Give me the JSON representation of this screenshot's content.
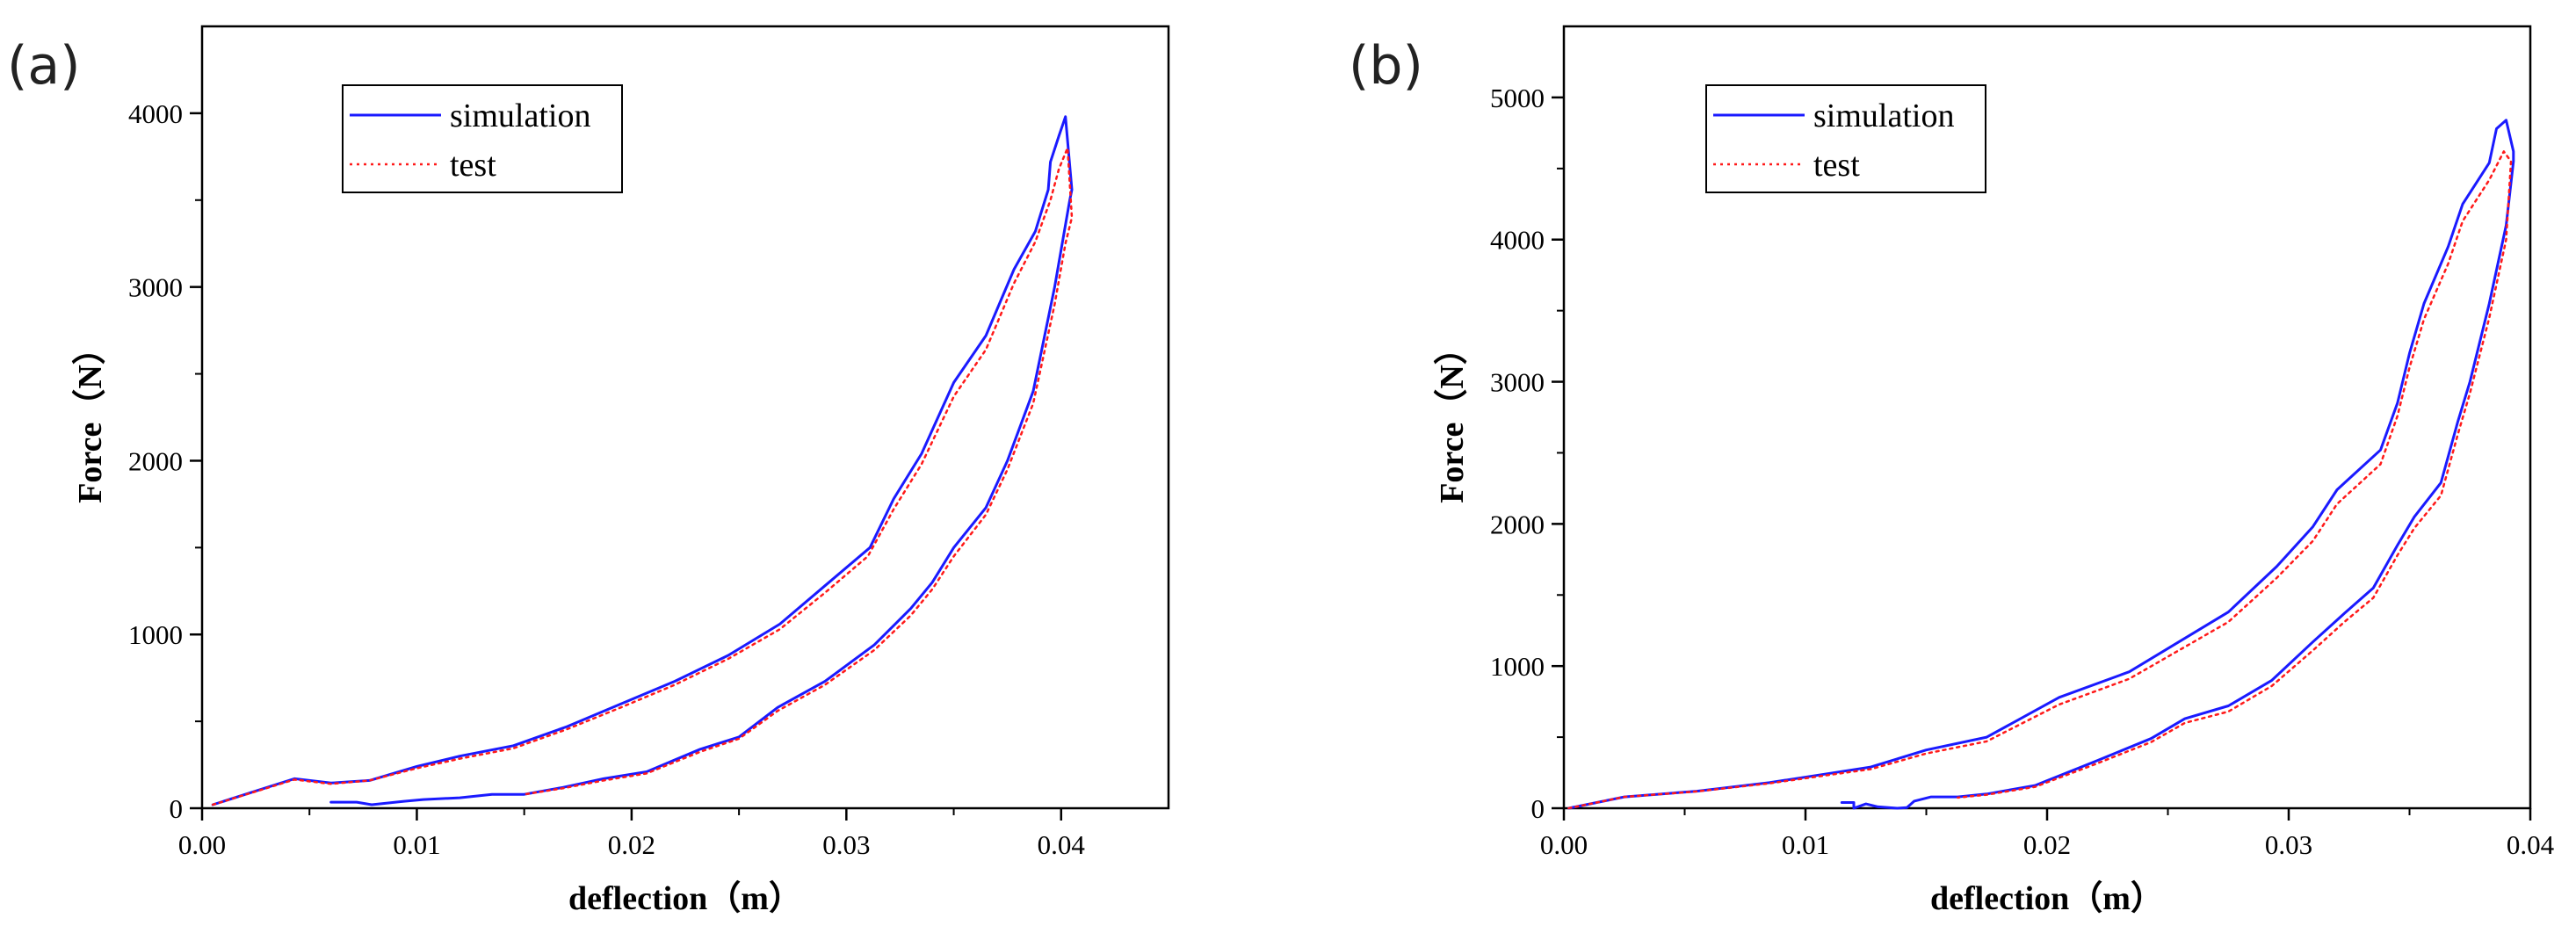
{
  "colors": {
    "simulation": "#1a1aff",
    "test": "#ff1a1a",
    "axis": "#000000"
  },
  "chart_data": [
    {
      "type": "line",
      "panel_label": "(a)",
      "xlabel": "deflection（m）",
      "ylabel": "Force（N）",
      "xlim": [
        0.0,
        0.045
      ],
      "ylim": [
        0,
        4500
      ],
      "xticks": [
        0.0,
        0.01,
        0.02,
        0.03,
        0.04
      ],
      "xtick_labels": [
        "0.00",
        "0.01",
        "0.02",
        "0.03",
        "0.04"
      ],
      "yticks": [
        0,
        1000,
        2000,
        3000,
        4000
      ],
      "ytick_labels": [
        "0",
        "1000",
        "2000",
        "3000",
        "4000"
      ],
      "legend": [
        "simulation",
        "test"
      ],
      "legend_position": "top-left",
      "series": [
        {
          "name": "simulation",
          "style": "solid",
          "points": [
            [
              0.0005,
              20
            ],
            [
              0.0043,
              170
            ],
            [
              0.006,
              145
            ],
            [
              0.0078,
              160
            ],
            [
              0.01,
              240
            ],
            [
              0.012,
              300
            ],
            [
              0.0145,
              360
            ],
            [
              0.017,
              470
            ],
            [
              0.0195,
              600
            ],
            [
              0.022,
              730
            ],
            [
              0.0245,
              880
            ],
            [
              0.0269,
              1060
            ],
            [
              0.029,
              1280
            ],
            [
              0.0311,
              1500
            ],
            [
              0.0322,
              1780
            ],
            [
              0.0335,
              2040
            ],
            [
              0.035,
              2450
            ],
            [
              0.0365,
              2720
            ],
            [
              0.0378,
              3100
            ],
            [
              0.0388,
              3320
            ],
            [
              0.0394,
              3560
            ],
            [
              0.0395,
              3720
            ],
            [
              0.0399,
              3870
            ],
            [
              0.0402,
              3980
            ],
            [
              0.0405,
              3560
            ],
            [
              0.0404,
              3500
            ],
            [
              0.0397,
              3000
            ],
            [
              0.0387,
              2400
            ],
            [
              0.0375,
              2000
            ],
            [
              0.0365,
              1730
            ],
            [
              0.035,
              1500
            ],
            [
              0.034,
              1300
            ],
            [
              0.033,
              1150
            ],
            [
              0.0313,
              940
            ],
            [
              0.029,
              730
            ],
            [
              0.0268,
              580
            ],
            [
              0.025,
              410
            ],
            [
              0.0232,
              340
            ],
            [
              0.0207,
              210
            ],
            [
              0.0187,
              170
            ],
            [
              0.0168,
              120
            ],
            [
              0.015,
              80
            ],
            [
              0.0135,
              80
            ],
            [
              0.012,
              60
            ],
            [
              0.0103,
              50
            ],
            [
              0.0094,
              40
            ],
            [
              0.0079,
              20
            ],
            [
              0.0072,
              35
            ],
            [
              0.0065,
              35
            ],
            [
              0.006,
              35
            ]
          ]
        },
        {
          "name": "test",
          "style": "dotted",
          "points": [
            [
              0.0005,
              20
            ],
            [
              0.0043,
              165
            ],
            [
              0.006,
              140
            ],
            [
              0.0078,
              160
            ],
            [
              0.01,
              230
            ],
            [
              0.012,
              285
            ],
            [
              0.0145,
              345
            ],
            [
              0.017,
              455
            ],
            [
              0.0195,
              580
            ],
            [
              0.022,
              710
            ],
            [
              0.0245,
              860
            ],
            [
              0.0269,
              1030
            ],
            [
              0.029,
              1240
            ],
            [
              0.031,
              1450
            ],
            [
              0.0322,
              1720
            ],
            [
              0.0335,
              1980
            ],
            [
              0.035,
              2370
            ],
            [
              0.0365,
              2640
            ],
            [
              0.0378,
              3020
            ],
            [
              0.0388,
              3260
            ],
            [
              0.0395,
              3500
            ],
            [
              0.0399,
              3680
            ],
            [
              0.0403,
              3800
            ],
            [
              0.0405,
              3400
            ],
            [
              0.0402,
              3250
            ],
            [
              0.0397,
              2900
            ],
            [
              0.0387,
              2330
            ],
            [
              0.0375,
              1950
            ],
            [
              0.0365,
              1690
            ],
            [
              0.035,
              1450
            ],
            [
              0.034,
              1260
            ],
            [
              0.033,
              1110
            ],
            [
              0.0313,
              910
            ],
            [
              0.029,
              710
            ],
            [
              0.0268,
              560
            ],
            [
              0.025,
              400
            ],
            [
              0.0232,
              325
            ],
            [
              0.0207,
              200
            ],
            [
              0.0187,
              160
            ],
            [
              0.0168,
              115
            ],
            [
              0.015,
              80
            ]
          ]
        }
      ]
    },
    {
      "type": "line",
      "panel_label": "(b)",
      "xlabel": "deflection（m）",
      "ylabel": "Force（N）",
      "xlim": [
        0.0,
        0.04
      ],
      "ylim": [
        0,
        5500
      ],
      "xticks": [
        0.0,
        0.01,
        0.02,
        0.03,
        0.04
      ],
      "xtick_labels": [
        "0.00",
        "0.01",
        "0.02",
        "0.03",
        "0.04"
      ],
      "yticks": [
        0,
        1000,
        2000,
        3000,
        4000,
        5000
      ],
      "ytick_labels": [
        "0",
        "1000",
        "2000",
        "3000",
        "4000",
        "5000"
      ],
      "legend": [
        "simulation",
        "test"
      ],
      "legend_position": "top-left",
      "series": [
        {
          "name": "simulation",
          "style": "solid",
          "points": [
            [
              0.0002,
              0
            ],
            [
              0.0025,
              80
            ],
            [
              0.0055,
              120
            ],
            [
              0.0085,
              180
            ],
            [
              0.0108,
              240
            ],
            [
              0.0127,
              290
            ],
            [
              0.015,
              410
            ],
            [
              0.0175,
              500
            ],
            [
              0.0205,
              780
            ],
            [
              0.0234,
              960
            ],
            [
              0.0275,
              1380
            ],
            [
              0.0295,
              1700
            ],
            [
              0.031,
              1980
            ],
            [
              0.032,
              2240
            ],
            [
              0.0338,
              2520
            ],
            [
              0.0345,
              2850
            ],
            [
              0.035,
              3200
            ],
            [
              0.0356,
              3550
            ],
            [
              0.0366,
              3950
            ],
            [
              0.0372,
              4250
            ],
            [
              0.0383,
              4540
            ],
            [
              0.0386,
              4780
            ],
            [
              0.039,
              4840
            ],
            [
              0.0393,
              4620
            ],
            [
              0.0393,
              4550
            ],
            [
              0.039,
              4100
            ],
            [
              0.0383,
              3550
            ],
            [
              0.0375,
              3000
            ],
            [
              0.037,
              2720
            ],
            [
              0.0363,
              2290
            ],
            [
              0.0352,
              2050
            ],
            [
              0.0345,
              1850
            ],
            [
              0.0335,
              1550
            ],
            [
              0.0323,
              1370
            ],
            [
              0.031,
              1170
            ],
            [
              0.0293,
              900
            ],
            [
              0.0275,
              720
            ],
            [
              0.0257,
              630
            ],
            [
              0.0243,
              490
            ],
            [
              0.022,
              330
            ],
            [
              0.0195,
              160
            ],
            [
              0.0175,
              100
            ],
            [
              0.0163,
              80
            ],
            [
              0.0152,
              80
            ],
            [
              0.0145,
              50
            ],
            [
              0.0142,
              5
            ],
            [
              0.0138,
              0
            ],
            [
              0.013,
              10
            ],
            [
              0.0125,
              30
            ],
            [
              0.012,
              0
            ],
            [
              0.012,
              40
            ],
            [
              0.0115,
              40
            ]
          ]
        },
        {
          "name": "test",
          "style": "dotted",
          "points": [
            [
              0.0002,
              0
            ],
            [
              0.0025,
              80
            ],
            [
              0.0055,
              118
            ],
            [
              0.0085,
              175
            ],
            [
              0.0108,
              230
            ],
            [
              0.0127,
              275
            ],
            [
              0.015,
              385
            ],
            [
              0.0175,
              470
            ],
            [
              0.0205,
              730
            ],
            [
              0.0234,
              910
            ],
            [
              0.0275,
              1310
            ],
            [
              0.0295,
              1620
            ],
            [
              0.031,
              1880
            ],
            [
              0.032,
              2140
            ],
            [
              0.0338,
              2420
            ],
            [
              0.0345,
              2760
            ],
            [
              0.035,
              3100
            ],
            [
              0.0356,
              3440
            ],
            [
              0.0366,
              3830
            ],
            [
              0.0372,
              4130
            ],
            [
              0.0383,
              4420
            ],
            [
              0.0389,
              4620
            ],
            [
              0.0392,
              4550
            ],
            [
              0.039,
              4000
            ],
            [
              0.0383,
              3450
            ],
            [
              0.0375,
              2920
            ],
            [
              0.037,
              2630
            ],
            [
              0.0363,
              2200
            ],
            [
              0.0352,
              1970
            ],
            [
              0.0345,
              1780
            ],
            [
              0.0335,
              1480
            ],
            [
              0.0323,
              1310
            ],
            [
              0.031,
              1110
            ],
            [
              0.0293,
              860
            ],
            [
              0.0275,
              680
            ],
            [
              0.0257,
              600
            ],
            [
              0.0243,
              465
            ],
            [
              0.022,
              310
            ],
            [
              0.0195,
              150
            ],
            [
              0.0175,
              95
            ],
            [
              0.0163,
              75
            ]
          ]
        }
      ]
    }
  ]
}
